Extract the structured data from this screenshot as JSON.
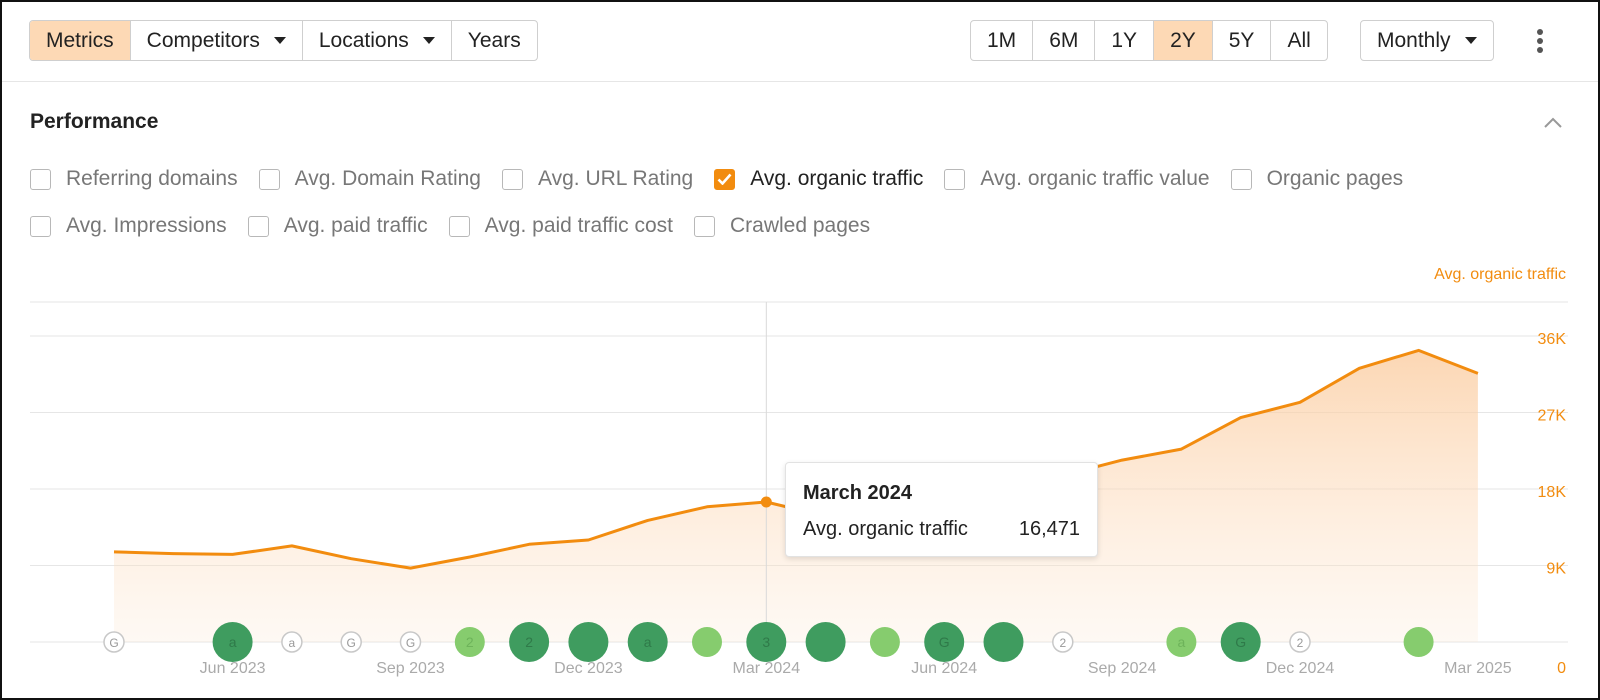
{
  "toolbar": {
    "left_group": [
      {
        "label": "Metrics",
        "active": true,
        "dropdown": false
      },
      {
        "label": "Competitors",
        "active": false,
        "dropdown": true
      },
      {
        "label": "Locations",
        "active": false,
        "dropdown": true
      },
      {
        "label": "Years",
        "active": false,
        "dropdown": false
      }
    ],
    "ranges": [
      {
        "label": "1M",
        "active": false
      },
      {
        "label": "6M",
        "active": false
      },
      {
        "label": "1Y",
        "active": false
      },
      {
        "label": "2Y",
        "active": true
      },
      {
        "label": "5Y",
        "active": false
      },
      {
        "label": "All",
        "active": false
      }
    ],
    "interval_label": "Monthly",
    "more_icon": "kebab-vertical-icon"
  },
  "section": {
    "title": "Performance",
    "collapse_icon": "chevron-up-icon"
  },
  "metrics_row1": [
    {
      "label": "Referring domains",
      "checked": false
    },
    {
      "label": "Avg. Domain Rating",
      "checked": false
    },
    {
      "label": "Avg. URL Rating",
      "checked": false
    },
    {
      "label": "Avg. organic traffic",
      "checked": true
    },
    {
      "label": "Avg. organic traffic value",
      "checked": false
    },
    {
      "label": "Organic pages",
      "checked": false
    }
  ],
  "metrics_row2": [
    {
      "label": "Avg. Impressions",
      "checked": false
    },
    {
      "label": "Avg. paid traffic",
      "checked": false
    },
    {
      "label": "Avg. paid traffic cost",
      "checked": false
    },
    {
      "label": "Crawled pages",
      "checked": false
    }
  ],
  "colors": {
    "accent": "#f28c0f",
    "active_button": "#fdd9b5",
    "annotation_dark_green": "#3f9c5f",
    "annotation_light_green": "#86cc6e"
  },
  "chart_data": {
    "type": "area",
    "series_label": "Avg. organic traffic",
    "x": [
      "2023-04",
      "2023-05",
      "2023-06",
      "2023-07",
      "2023-08",
      "2023-09",
      "2023-10",
      "2023-11",
      "2023-12",
      "2024-01",
      "2024-02",
      "2024-03",
      "2024-04",
      "2024-05",
      "2024-06",
      "2024-07",
      "2024-08",
      "2024-09",
      "2024-10",
      "2024-11",
      "2024-12",
      "2025-01",
      "2025-02",
      "2025-03"
    ],
    "series": [
      {
        "name": "Avg. organic traffic",
        "values": [
          10600,
          10400,
          10300,
          11300,
          9800,
          8700,
          10000,
          11500,
          12000,
          14300,
          15900,
          16471,
          14800,
          15700,
          17600,
          20200,
          19600,
          21400,
          22700,
          26400,
          28200,
          32200,
          34300,
          31600
        ]
      }
    ],
    "x_tick_labels": [
      "Jun 2023",
      "Sep 2023",
      "Dec 2023",
      "Mar 2024",
      "Jun 2024",
      "Sep 2024",
      "Dec 2024",
      "Mar 2025"
    ],
    "y_tick_labels": [
      "0",
      "9K",
      "18K",
      "27K",
      "36K"
    ],
    "ylim": [
      0,
      36000
    ],
    "y_axis_side": "right",
    "grid": true,
    "legend": "top-right",
    "tooltip": {
      "title": "March 2024",
      "label": "Avg. organic traffic",
      "value": "16,471"
    },
    "annotations": [
      {
        "date": "2023-04",
        "glyph": "G",
        "style": "outline"
      },
      {
        "date": "2023-06",
        "glyph": "a",
        "style": "dark"
      },
      {
        "date": "2023-07",
        "glyph": "a",
        "style": "outline"
      },
      {
        "date": "2023-08",
        "glyph": "G",
        "style": "outline"
      },
      {
        "date": "2023-09",
        "glyph": "G",
        "style": "outline"
      },
      {
        "date": "2023-10",
        "glyph": "2",
        "style": "light"
      },
      {
        "date": "2023-11",
        "glyph": "2",
        "style": "dark"
      },
      {
        "date": "2023-12",
        "glyph": "",
        "style": "dark"
      },
      {
        "date": "2024-01",
        "glyph": "a",
        "style": "dark"
      },
      {
        "date": "2024-02",
        "glyph": "",
        "style": "light"
      },
      {
        "date": "2024-03",
        "glyph": "3",
        "style": "dark"
      },
      {
        "date": "2024-04",
        "glyph": "",
        "style": "dark"
      },
      {
        "date": "2024-05",
        "glyph": "",
        "style": "light"
      },
      {
        "date": "2024-06",
        "glyph": "G",
        "style": "dark"
      },
      {
        "date": "2024-07",
        "glyph": "",
        "style": "dark"
      },
      {
        "date": "2024-08",
        "glyph": "2",
        "style": "outline"
      },
      {
        "date": "2024-10",
        "glyph": "a",
        "style": "light"
      },
      {
        "date": "2024-11",
        "glyph": "G",
        "style": "dark"
      },
      {
        "date": "2024-12",
        "glyph": "2",
        "style": "outline"
      },
      {
        "date": "2025-02",
        "glyph": "",
        "style": "light"
      }
    ]
  }
}
